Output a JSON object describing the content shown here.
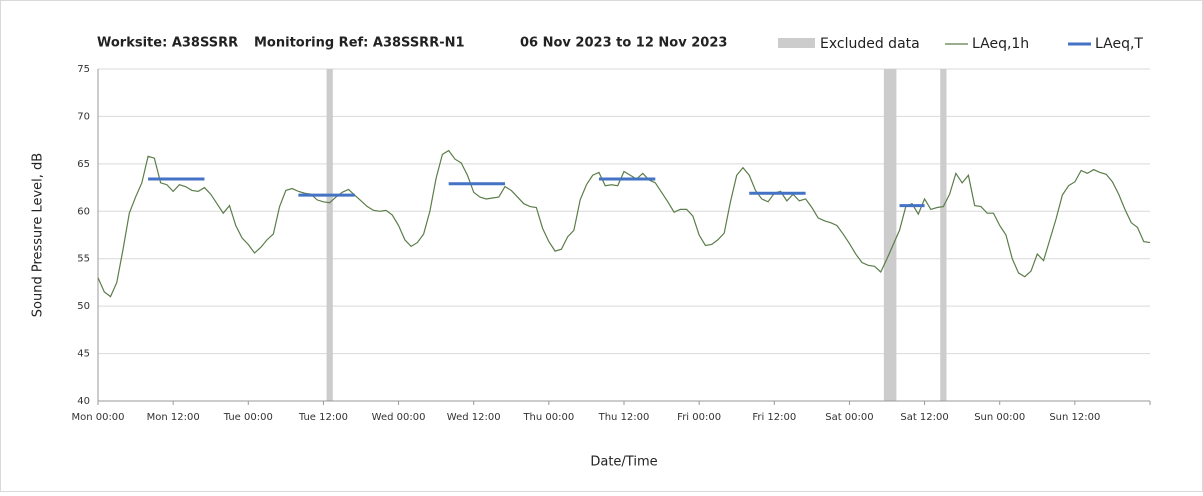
{
  "chart_data": {
    "type": "line",
    "title_parts": [
      "Worksite: A38SSRR",
      "Monitoring Ref: A38SSRR-N1",
      "06 Nov 2023 to 12 Nov 2023"
    ],
    "xlabel": "Date/Time",
    "ylabel": "Sound Pressure Level, dB",
    "xlim": [
      0,
      168
    ],
    "ylim": [
      40,
      75
    ],
    "yticks": [
      40,
      45,
      50,
      55,
      60,
      65,
      70,
      75
    ],
    "xticks": [
      {
        "value": 0,
        "label": "Mon 00:00"
      },
      {
        "value": 12,
        "label": "Mon 12:00"
      },
      {
        "value": 24,
        "label": "Tue 00:00"
      },
      {
        "value": 36,
        "label": "Tue 12:00"
      },
      {
        "value": 48,
        "label": "Wed 00:00"
      },
      {
        "value": 60,
        "label": "Wed 12:00"
      },
      {
        "value": 72,
        "label": "Thu 00:00"
      },
      {
        "value": 84,
        "label": "Thu 12:00"
      },
      {
        "value": 96,
        "label": "Fri 00:00"
      },
      {
        "value": 108,
        "label": "Fri 12:00"
      },
      {
        "value": 120,
        "label": "Sat 00:00"
      },
      {
        "value": 132,
        "label": "Sat 12:00"
      },
      {
        "value": 144,
        "label": "Sun 00:00"
      },
      {
        "value": 156,
        "label": "Sun 12:00"
      }
    ],
    "grid": true,
    "excluded": {
      "name": "Excluded data",
      "color": "#cccccc",
      "ranges": [
        [
          36.5,
          37.5
        ],
        [
          125.5,
          127.5
        ],
        [
          134.5,
          135.5
        ]
      ]
    },
    "x": [
      0,
      1,
      2,
      3,
      4,
      5,
      6,
      7,
      8,
      9,
      10,
      11,
      12,
      13,
      14,
      15,
      16,
      17,
      18,
      19,
      20,
      21,
      22,
      23,
      24,
      25,
      26,
      27,
      28,
      29,
      30,
      31,
      32,
      33,
      34,
      35,
      36,
      37,
      38,
      39,
      40,
      41,
      42,
      43,
      44,
      45,
      46,
      47,
      48,
      49,
      50,
      51,
      52,
      53,
      54,
      55,
      56,
      57,
      58,
      59,
      60,
      61,
      62,
      63,
      64,
      65,
      66,
      67,
      68,
      69,
      70,
      71,
      72,
      73,
      74,
      75,
      76,
      77,
      78,
      79,
      80,
      81,
      82,
      83,
      84,
      85,
      86,
      87,
      88,
      89,
      90,
      91,
      92,
      93,
      94,
      95,
      96,
      97,
      98,
      99,
      100,
      101,
      102,
      103,
      104,
      105,
      106,
      107,
      108,
      109,
      110,
      111,
      112,
      113,
      114,
      115,
      116,
      117,
      118,
      119,
      120,
      121,
      122,
      123,
      124,
      125,
      126,
      127,
      128,
      129,
      130,
      131,
      132,
      133,
      134,
      135,
      136,
      137,
      138,
      139,
      140,
      141,
      142,
      143,
      144,
      145,
      146,
      147,
      148,
      149,
      150,
      151,
      152,
      153,
      154,
      155,
      156,
      157,
      158,
      159,
      160,
      161,
      162,
      163,
      164,
      165,
      166,
      167,
      168
    ],
    "series": [
      {
        "name": "LAeq,1h",
        "color": "#5b7d4a",
        "values": [
          53,
          51.5,
          51,
          52.5,
          56,
          59.8,
          61.5,
          63,
          65.8,
          65.6,
          63,
          62.8,
          62.1,
          62.8,
          62.6,
          62.2,
          62.1,
          62.5,
          61.8,
          60.8,
          59.8,
          60.6,
          58.5,
          57.2,
          56.5,
          55.6,
          56.2,
          57,
          57.6,
          60.5,
          62.2,
          62.4,
          62.1,
          61.9,
          61.8,
          61.2,
          61,
          60.9,
          61.5,
          62,
          62.3,
          61.7,
          61.1,
          60.5,
          60.1,
          60,
          60.1,
          59.6,
          58.5,
          57,
          56.3,
          56.7,
          57.6,
          60,
          63.5,
          66,
          66.4,
          65.5,
          65.1,
          63.8,
          62,
          61.5,
          61.3,
          61.4,
          61.5,
          62.6,
          62.2,
          61.5,
          60.8,
          60.5,
          60.4,
          58.2,
          56.8,
          55.8,
          56,
          57.3,
          58,
          61.2,
          62.8,
          63.8,
          64.1,
          62.7,
          62.8,
          62.7,
          64.2,
          63.8,
          63.4,
          64,
          63.3,
          63,
          62,
          61,
          59.9,
          60.2,
          60.2,
          59.5,
          57.5,
          56.4,
          56.5,
          57,
          57.7,
          61,
          63.8,
          64.6,
          63.8,
          62.2,
          61.3,
          61,
          61.9,
          62.1,
          61.1,
          61.8,
          61.1,
          61.3,
          60.4,
          59.3,
          59,
          58.8,
          58.5,
          57.6,
          56.6,
          55.5,
          54.6,
          54.3,
          54.2,
          53.6,
          55,
          56.5,
          58,
          60.5,
          60.8,
          59.7,
          61.3,
          60.2,
          60.4,
          60.5,
          61.8,
          64,
          63,
          63.8,
          60.6,
          60.5,
          59.8,
          59.8,
          58.5,
          57.5,
          55,
          53.5,
          53.1,
          53.7,
          55.5,
          54.8,
          57,
          59.2,
          61.7,
          62.7,
          63.1,
          64.3,
          64,
          64.4,
          64.1,
          63.9,
          63.1,
          61.8,
          60.2,
          58.8,
          58.3,
          56.8,
          56.7
        ]
      },
      {
        "name": "LAeq,T",
        "color": "#4472c4",
        "segments": [
          {
            "x": [
              8,
              17
            ],
            "value": 63.4
          },
          {
            "x": [
              32,
              41
            ],
            "value": 61.7
          },
          {
            "x": [
              56,
              65
            ],
            "value": 62.9
          },
          {
            "x": [
              80,
              89
            ],
            "value": 63.4
          },
          {
            "x": [
              104,
              113
            ],
            "value": 61.9
          },
          {
            "x": [
              128,
              132
            ],
            "value": 60.6
          }
        ]
      }
    ]
  }
}
